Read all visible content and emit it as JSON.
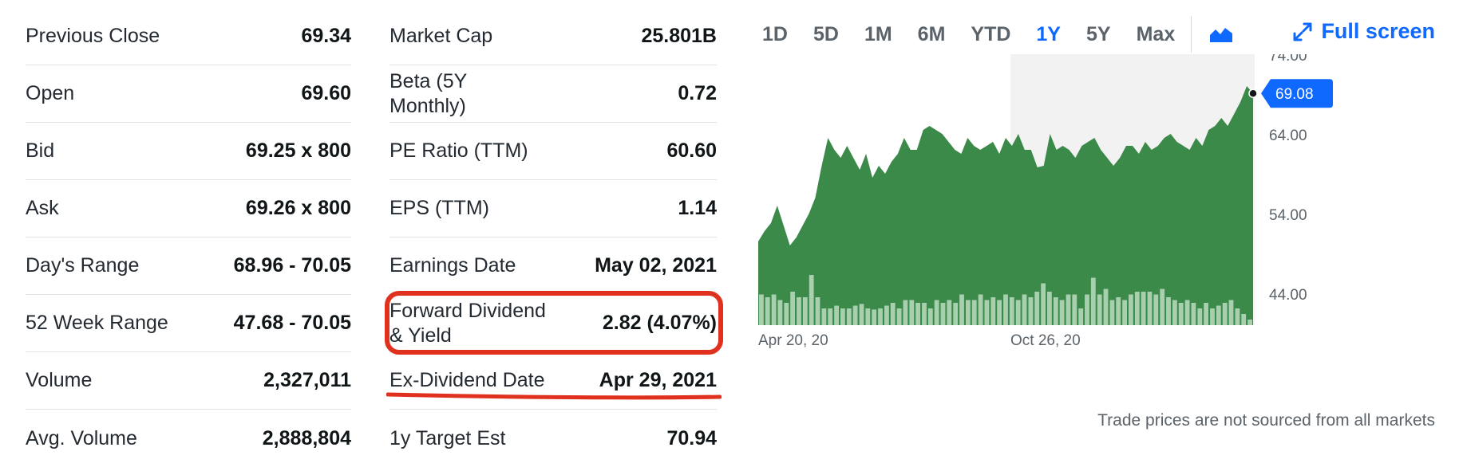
{
  "stats_left": [
    {
      "label": "Previous Close",
      "value": "69.34"
    },
    {
      "label": "Open",
      "value": "69.60"
    },
    {
      "label": "Bid",
      "value": "69.25 x 800"
    },
    {
      "label": "Ask",
      "value": "69.26 x 800"
    },
    {
      "label": "Day's Range",
      "value": "68.96 - 70.05"
    },
    {
      "label": "52 Week Range",
      "value": "47.68 - 70.05"
    },
    {
      "label": "Volume",
      "value": "2,327,011"
    },
    {
      "label": "Avg. Volume",
      "value": "2,888,804"
    }
  ],
  "stats_right": [
    {
      "label": "Market Cap",
      "value": "25.801B"
    },
    {
      "label": "Beta (5Y Monthly)",
      "value": "0.72"
    },
    {
      "label": "PE Ratio (TTM)",
      "value": "60.60"
    },
    {
      "label": "EPS (TTM)",
      "value": "1.14"
    },
    {
      "label": "Earnings Date",
      "value": "May 02, 2021"
    },
    {
      "label": "Forward Dividend & Yield",
      "value": "2.82 (4.07%)"
    },
    {
      "label": "Ex-Dividend Date",
      "value": "Apr 29, 2021"
    },
    {
      "label": "1y Target Est",
      "value": "70.94"
    }
  ],
  "toolbar": {
    "ranges": [
      "1D",
      "5D",
      "1M",
      "6M",
      "YTD",
      "1Y",
      "5Y",
      "Max"
    ],
    "active_range": "1Y",
    "chart_type_icon": "area-chart-icon",
    "fullscreen_label": "Full screen",
    "fullscreen_icon": "expand-arrows-icon"
  },
  "annotation_color": "#e0301e",
  "accent_color": "#0f69ff",
  "disclaimer": "Trade prices are not sourced from all markets",
  "chart_data": {
    "type": "area",
    "x_tick_labels": [
      "Apr 20, 20",
      "Oct 26, 20"
    ],
    "y_tick_labels": [
      "74.00",
      "64.00",
      "54.00",
      "44.00"
    ],
    "ylim": [
      40,
      74
    ],
    "current_price_label": "69.08",
    "current_price": 69.08,
    "series": [
      {
        "values": [
          50.5,
          51.8,
          52.8,
          55.0,
          52.5,
          50.0,
          51.0,
          52.5,
          54.0,
          56.0,
          60.0,
          63.5,
          62.0,
          61.0,
          62.5,
          61.0,
          59.5,
          61.5,
          58.5,
          60.0,
          59.0,
          60.5,
          61.5,
          63.5,
          62.0,
          62.0,
          64.5,
          65.0,
          64.5,
          64.0,
          63.0,
          62.0,
          61.5,
          63.5,
          62.5,
          62.0,
          62.5,
          63.0,
          61.5,
          63.5,
          62.5,
          64.0,
          62.0,
          62.0,
          59.8,
          60.0,
          64.0,
          62.0,
          62.5,
          62.0,
          61.0,
          62.5,
          63.0,
          63.5,
          62.0,
          61.0,
          60.0,
          61.0,
          62.5,
          62.5,
          61.5,
          63.0,
          62.0,
          62.5,
          63.5,
          64.0,
          63.0,
          62.5,
          62.0,
          63.5,
          62.5,
          64.5,
          65.0,
          66.0,
          65.0,
          66.5,
          68.0,
          70.0,
          69.08
        ],
        "volume_relative": [
          0.55,
          0.5,
          0.55,
          0.45,
          0.4,
          0.6,
          0.5,
          0.5,
          0.9,
          0.5,
          0.3,
          0.3,
          0.35,
          0.3,
          0.3,
          0.35,
          0.38,
          0.3,
          0.28,
          0.3,
          0.35,
          0.4,
          0.3,
          0.45,
          0.45,
          0.4,
          0.4,
          0.3,
          0.45,
          0.4,
          0.45,
          0.4,
          0.55,
          0.45,
          0.45,
          0.55,
          0.45,
          0.5,
          0.45,
          0.55,
          0.5,
          0.45,
          0.55,
          0.5,
          0.6,
          0.75,
          0.6,
          0.5,
          0.45,
          0.55,
          0.55,
          0.3,
          0.55,
          0.85,
          0.55,
          0.65,
          0.45,
          0.5,
          0.45,
          0.55,
          0.6,
          0.6,
          0.6,
          0.55,
          0.65,
          0.5,
          0.45,
          0.4,
          0.45,
          0.4,
          0.3,
          0.4,
          0.3,
          0.35,
          0.4,
          0.45,
          0.3,
          0.2,
          0.1
        ]
      }
    ]
  }
}
